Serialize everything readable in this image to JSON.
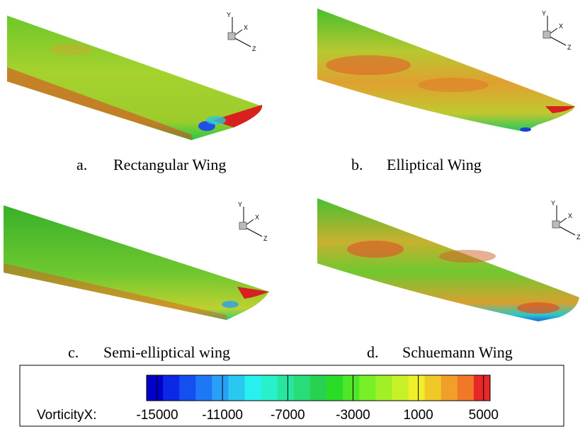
{
  "panels": [
    {
      "letter": "a.",
      "title": "Rectangular Wing",
      "axes": {
        "y": "Y",
        "x": "X",
        "z": "Z"
      }
    },
    {
      "letter": "b.",
      "title": "Elliptical Wing",
      "axes": {
        "y": "Y",
        "x": "X",
        "z": "Z"
      }
    },
    {
      "letter": "c.",
      "title": "Semi-elliptical wing",
      "axes": {
        "y": "Y",
        "x": "X",
        "z": "Z"
      }
    },
    {
      "letter": "d.",
      "title": "Schuemann Wing",
      "axes": {
        "y": "Y",
        "x": "X",
        "z": "Z"
      }
    }
  ],
  "colorbar": {
    "label": "VorticityX:",
    "range": [
      -15650,
      5400
    ],
    "ticks": [
      -15000,
      -11000,
      -7000,
      -3000,
      1000,
      5000
    ],
    "colors": [
      "#0000c8",
      "#0a28e6",
      "#1450f0",
      "#1e78f5",
      "#28a0f5",
      "#28c8f0",
      "#28f0f0",
      "#28f0c8",
      "#28e6a0",
      "#28dc78",
      "#28d250",
      "#28dc28",
      "#50e628",
      "#78f028",
      "#a0f028",
      "#c8f028",
      "#f0f028",
      "#f0c828",
      "#f0a028",
      "#f07828",
      "#e62828"
    ]
  }
}
